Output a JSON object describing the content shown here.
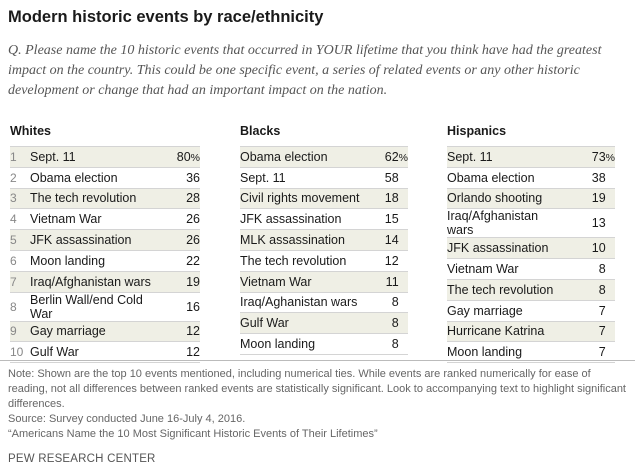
{
  "title": "Modern historic events by race/ethnicity",
  "question": {
    "prefix": "Q.",
    "text": "Please name the 10 historic events that occurred in YOUR lifetime that you think have had the greatest impact on the country. This could be one specific event, a series of related events or any other historic development or change that had an important impact on the nation."
  },
  "chart_data": {
    "type": "table",
    "groups": [
      {
        "name": "Whites",
        "rows": [
          {
            "rank": "1",
            "event": "Sept. 11",
            "value": "80",
            "suffix": "%"
          },
          {
            "rank": "2",
            "event": "Obama election",
            "value": "36",
            "suffix": ""
          },
          {
            "rank": "3",
            "event": "The tech revolution",
            "value": "28",
            "suffix": ""
          },
          {
            "rank": "4",
            "event": "Vietnam War",
            "value": "26",
            "suffix": ""
          },
          {
            "rank": "5",
            "event": "JFK assassination",
            "value": "26",
            "suffix": ""
          },
          {
            "rank": "6",
            "event": "Moon landing",
            "value": "22",
            "suffix": ""
          },
          {
            "rank": "7",
            "event": "Iraq/Afghanistan wars",
            "value": "19",
            "suffix": ""
          },
          {
            "rank": "8",
            "event": "Berlin Wall/end Cold War",
            "value": "16",
            "suffix": ""
          },
          {
            "rank": "9",
            "event": "Gay marriage",
            "value": "12",
            "suffix": ""
          },
          {
            "rank": "10",
            "event": "Gulf War",
            "value": "12",
            "suffix": ""
          }
        ]
      },
      {
        "name": "Blacks",
        "rows": [
          {
            "event": "Obama election",
            "value": "62",
            "suffix": "%"
          },
          {
            "event": "Sept. 11",
            "value": "58",
            "suffix": ""
          },
          {
            "event": "Civil rights movement",
            "value": "18",
            "suffix": ""
          },
          {
            "event": "JFK assassination",
            "value": "15",
            "suffix": ""
          },
          {
            "event": "MLK assassination",
            "value": "14",
            "suffix": ""
          },
          {
            "event": "The tech revolution",
            "value": "12",
            "suffix": ""
          },
          {
            "event": "Vietnam War",
            "value": "11",
            "suffix": ""
          },
          {
            "event": "Iraq/Aghanistan wars",
            "value": "8",
            "suffix": ""
          },
          {
            "event": "Gulf War",
            "value": "8",
            "suffix": ""
          },
          {
            "event": "Moon landing",
            "value": "8",
            "suffix": ""
          }
        ]
      },
      {
        "name": "Hispanics",
        "rows": [
          {
            "event": "Sept. 11",
            "value": "73",
            "suffix": "%"
          },
          {
            "event": "Obama election",
            "value": "38",
            "suffix": ""
          },
          {
            "event": "Orlando shooting",
            "value": "19",
            "suffix": ""
          },
          {
            "event": "Iraq/Afghanistan wars",
            "value": "13",
            "suffix": ""
          },
          {
            "event": "JFK assassination",
            "value": "10",
            "suffix": ""
          },
          {
            "event": "Vietnam War",
            "value": "8",
            "suffix": ""
          },
          {
            "event": "The tech revolution",
            "value": "8",
            "suffix": ""
          },
          {
            "event": "Gay marriage",
            "value": "7",
            "suffix": ""
          },
          {
            "event": "Hurricane Katrina",
            "value": "7",
            "suffix": ""
          },
          {
            "event": "Moon landing",
            "value": "7",
            "suffix": ""
          }
        ]
      }
    ]
  },
  "notes": {
    "note": "Note: Shown are the top 10 events mentioned, including numerical ties. While events are ranked numerically for ease of reading, not all differences between ranked events are statistically significant. Look to accompanying text to highlight significant differences.",
    "source": "Source: Survey conducted June 16-July 4, 2016.",
    "report": "“Americans Name the 10 Most Significant Historic Events of Their Lifetimes”",
    "credit": "PEW RESEARCH CENTER"
  },
  "colors": {
    "row_shade": "#efefe5",
    "rule": "#d4d4d4",
    "text": "#1a1a1a",
    "muted": "#666666"
  }
}
